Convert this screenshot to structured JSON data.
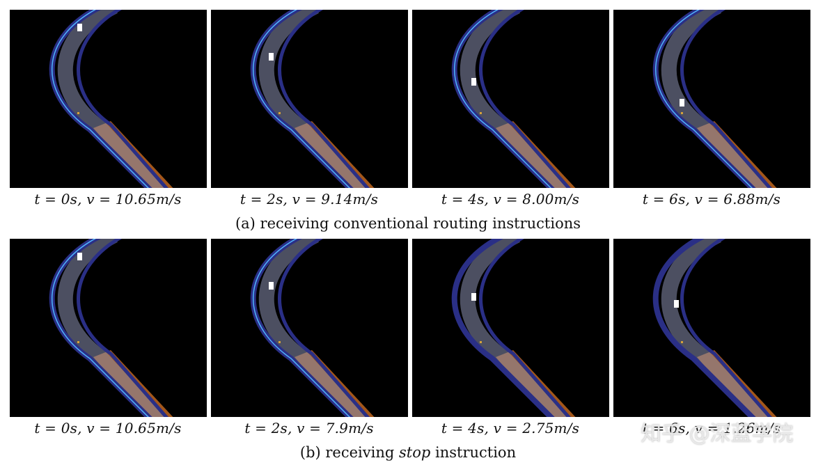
{
  "row_a": {
    "captions": [
      "t = 0s, v = 10.65m/s",
      "t = 2s, v = 9.14m/s",
      "t = 4s, v = 8.00m/s",
      "t = 6s, v = 6.88m/s"
    ],
    "subcaption": "(a) receiving conventional routing instructions"
  },
  "row_b": {
    "captions": [
      "t = 0s, v = 10.65m/s",
      "t = 2s, v = 7.9m/s",
      "t = 4s, v = 2.75m/s",
      "t = 6s, v = 1.26m/s"
    ],
    "subcaption_prefix": "(b) receiving ",
    "subcaption_em": "stop",
    "subcaption_suffix": " instruction"
  },
  "watermark": "知乎 @深蓝学院",
  "colors": {
    "background": "#000000",
    "track": "#2a2f86",
    "track_fill": "#8a8fb0",
    "rail": "#c0661e",
    "vehicle": "#ffffff",
    "path": "#4fb3ff"
  }
}
